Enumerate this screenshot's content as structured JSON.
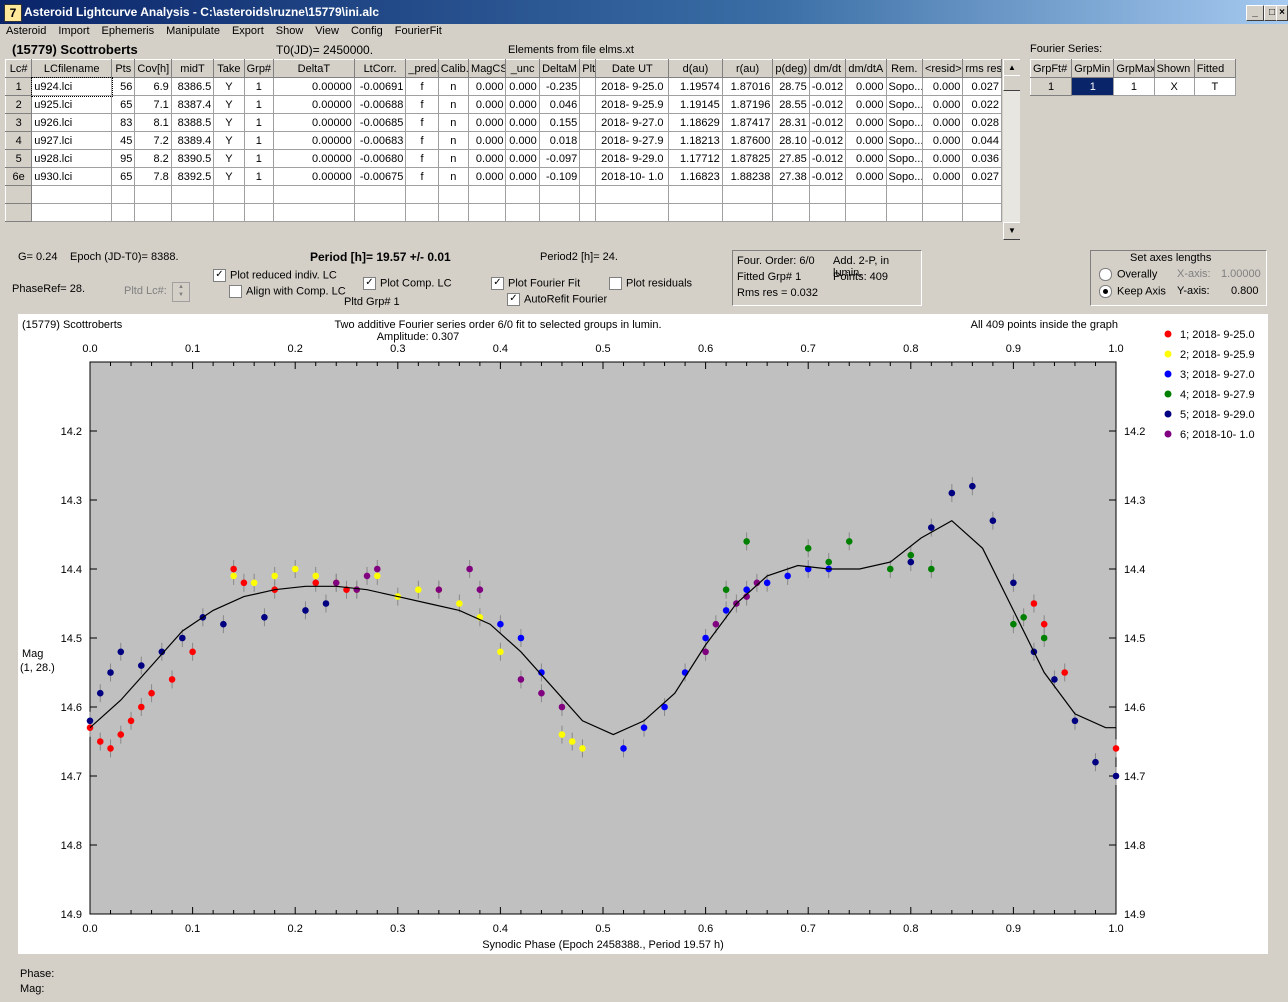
{
  "window": {
    "title": "Asteroid Lightcurve Analysis - C:\\asteroids\\ruzne\\15779\\ini.alc"
  },
  "menu": [
    "Asteroid",
    "Import",
    "Ephemeris",
    "Manipulate",
    "Export",
    "Show",
    "View",
    "Config",
    "FourierFit"
  ],
  "header": {
    "asteroid": "(15779) Scottroberts",
    "t0": "T0(JD)= 2450000.",
    "elements": "Elements from file elms.xt"
  },
  "lc_table": {
    "columns": [
      "Lc#",
      "LCfilename",
      "Pts",
      "Cov[h]",
      "midT",
      "Take",
      "Grp#",
      "DeltaT",
      "LtCorr.",
      "_pred.",
      "Calib.",
      "MagCS",
      "_unc",
      "DeltaM",
      "Plt",
      "Date UT",
      "d(au)",
      "r(au)",
      "p(deg)",
      "dm/dt",
      "dm/dtA",
      "Rem.",
      "<resid>",
      "rms res"
    ],
    "rows": [
      [
        "1",
        "u924.lci",
        "56",
        "6.9",
        "8386.5",
        "Y",
        "1",
        "0.00000",
        "-0.00691",
        "f",
        "n",
        "0.000",
        "0.000",
        "-0.235",
        "",
        "2018- 9-25.0",
        "1.19574",
        "1.87016",
        "28.75",
        "-0.012",
        "0.000",
        "Sopo...",
        "0.000",
        "0.027"
      ],
      [
        "2",
        "u925.lci",
        "65",
        "7.1",
        "8387.4",
        "Y",
        "1",
        "0.00000",
        "-0.00688",
        "f",
        "n",
        "0.000",
        "0.000",
        "0.046",
        "",
        "2018- 9-25.9",
        "1.19145",
        "1.87196",
        "28.55",
        "-0.012",
        "0.000",
        "Sopo...",
        "0.000",
        "0.022"
      ],
      [
        "3",
        "u926.lci",
        "83",
        "8.1",
        "8388.5",
        "Y",
        "1",
        "0.00000",
        "-0.00685",
        "f",
        "n",
        "0.000",
        "0.000",
        "0.155",
        "",
        "2018- 9-27.0",
        "1.18629",
        "1.87417",
        "28.31",
        "-0.012",
        "0.000",
        "Sopo...",
        "0.000",
        "0.028"
      ],
      [
        "4",
        "u927.lci",
        "45",
        "7.2",
        "8389.4",
        "Y",
        "1",
        "0.00000",
        "-0.00683",
        "f",
        "n",
        "0.000",
        "0.000",
        "0.018",
        "",
        "2018- 9-27.9",
        "1.18213",
        "1.87600",
        "28.10",
        "-0.012",
        "0.000",
        "Sopo...",
        "0.000",
        "0.044"
      ],
      [
        "5",
        "u928.lci",
        "95",
        "8.2",
        "8390.5",
        "Y",
        "1",
        "0.00000",
        "-0.00680",
        "f",
        "n",
        "0.000",
        "0.000",
        "-0.097",
        "",
        "2018- 9-29.0",
        "1.17712",
        "1.87825",
        "27.85",
        "-0.012",
        "0.000",
        "Sopo...",
        "0.000",
        "0.036"
      ],
      [
        "6e",
        "u930.lci",
        "65",
        "7.8",
        "8392.5",
        "Y",
        "1",
        "0.00000",
        "-0.00675",
        "f",
        "n",
        "0.000",
        "0.000",
        "-0.109",
        "",
        "2018-10- 1.0",
        "1.16823",
        "1.88238",
        "27.38",
        "-0.012",
        "0.000",
        "Sopo...",
        "0.000",
        "0.027"
      ]
    ]
  },
  "fourier": {
    "label": "Fourier Series:",
    "columns": [
      "GrpFt#",
      "GrpMin",
      "GrpMax",
      "Shown",
      "Fitted"
    ],
    "row": [
      "1",
      "1",
      "1",
      "X",
      "T"
    ]
  },
  "info": {
    "g": "G= 0.24",
    "epoch": "Epoch (JD-T0)= 8388.",
    "period": "Period [h]= 19.57 +/- 0.01",
    "period2": "Period2 [h]= 24.",
    "phaseref": "PhaseRef= 28.",
    "pltd_lc": "Pltd Lc#:",
    "pltd_grp": "Pltd Grp#  1"
  },
  "checks": {
    "plot_reduced": {
      "label": "Plot reduced indiv. LC",
      "checked": true
    },
    "align_comp": {
      "label": "Align with Comp. LC",
      "checked": false
    },
    "plot_comp": {
      "label": "Plot Comp. LC",
      "checked": true
    },
    "plot_fourier": {
      "label": "Plot Fourier Fit",
      "checked": true
    },
    "autorefit": {
      "label": "AutoRefit Fourier",
      "checked": true
    },
    "plot_residuals": {
      "label": "Plot residuals",
      "checked": false
    }
  },
  "fitinfo": {
    "order": "Four. Order:  6/0",
    "add": "Add. 2-P, in lumin.",
    "fitted": "Fitted Grp# 1",
    "points": "Points: 409",
    "rms": "Rms res     = 0.032"
  },
  "axes_box": {
    "title": "Set axes lengths",
    "overall": "Overally",
    "keep": "Keep Axis",
    "selected": "keep",
    "xaxis_label": "X-axis:",
    "xaxis_value": "1.00000",
    "yaxis_label": "Y-axis:",
    "yaxis_value": "0.800"
  },
  "plot": {
    "title_left": "(15779) Scottroberts",
    "title_center": "Two additive Fourier series order 6/0 fit to selected groups in lumin.",
    "amplitude": "Amplitude: 0.307",
    "title_right": "All 409 points inside the graph",
    "ylabel1": "Mag",
    "ylabel2": "(1, 28.)",
    "xlabel": "Synodic Phase (Epoch 2458388., Period 19.57 h)",
    "x_ticks": [
      "0.0",
      "0.1",
      "0.2",
      "0.3",
      "0.4",
      "0.5",
      "0.6",
      "0.7",
      "0.8",
      "0.9",
      "1.0"
    ],
    "y_ticks": [
      "14.2",
      "14.3",
      "14.4",
      "14.5",
      "14.6",
      "14.7",
      "14.8",
      "14.9"
    ],
    "xlim": [
      0,
      1
    ],
    "ylim": [
      14.1,
      14.9
    ],
    "legend": [
      {
        "label": "1; 2018- 9-25.0",
        "color": "#ff0000"
      },
      {
        "label": "2; 2018- 9-25.9",
        "color": "#ffff00"
      },
      {
        "label": "3; 2018- 9-27.0",
        "color": "#0000ff"
      },
      {
        "label": "4; 2018- 9-27.9",
        "color": "#008000"
      },
      {
        "label": "5; 2018- 9-29.0",
        "color": "#000080"
      },
      {
        "label": "6; 2018-10- 1.0",
        "color": "#800080"
      }
    ]
  },
  "chart_data": {
    "type": "scatter",
    "xlabel": "Synodic Phase (Epoch 2458388., Period 19.57 h)",
    "ylabel": "Mag",
    "xlim": [
      0,
      1
    ],
    "ylim": [
      14.1,
      14.9
    ],
    "y_inverted": true,
    "grid": false,
    "legend_position": "right",
    "fit_curve": {
      "x": [
        0.0,
        0.03,
        0.06,
        0.09,
        0.12,
        0.15,
        0.18,
        0.21,
        0.24,
        0.27,
        0.3,
        0.33,
        0.36,
        0.39,
        0.42,
        0.45,
        0.48,
        0.51,
        0.54,
        0.57,
        0.6,
        0.63,
        0.66,
        0.69,
        0.72,
        0.75,
        0.78,
        0.81,
        0.84,
        0.87,
        0.9,
        0.93,
        0.96,
        0.99,
        1.0
      ],
      "y": [
        14.63,
        14.59,
        14.54,
        14.49,
        14.46,
        14.44,
        14.43,
        14.425,
        14.425,
        14.43,
        14.44,
        14.45,
        14.46,
        14.48,
        14.52,
        14.57,
        14.62,
        14.64,
        14.62,
        14.58,
        14.51,
        14.45,
        14.41,
        14.395,
        14.4,
        14.4,
        14.39,
        14.355,
        14.33,
        14.37,
        14.46,
        14.55,
        14.61,
        14.63,
        14.63
      ]
    },
    "series": [
      {
        "name": "1; 2018- 9-25.0",
        "x": [
          0.0,
          0.01,
          0.02,
          0.03,
          0.04,
          0.05,
          0.06,
          0.08,
          0.1,
          0.14,
          0.15,
          0.18,
          0.22,
          0.25,
          0.92,
          0.93,
          0.95,
          1.0
        ],
        "y": [
          14.63,
          14.65,
          14.66,
          14.64,
          14.62,
          14.6,
          14.58,
          14.56,
          14.52,
          14.4,
          14.42,
          14.43,
          14.42,
          14.43,
          14.45,
          14.48,
          14.55,
          14.66
        ]
      },
      {
        "name": "2; 2018- 9-25.9",
        "x": [
          0.14,
          0.16,
          0.18,
          0.2,
          0.22,
          0.24,
          0.26,
          0.28,
          0.3,
          0.32,
          0.34,
          0.36,
          0.38,
          0.4,
          0.46,
          0.47,
          0.48
        ],
        "y": [
          14.41,
          14.42,
          14.41,
          14.4,
          14.41,
          14.42,
          14.43,
          14.41,
          14.44,
          14.43,
          14.43,
          14.45,
          14.47,
          14.52,
          14.64,
          14.65,
          14.66
        ]
      },
      {
        "name": "3; 2018- 9-27.0",
        "x": [
          0.4,
          0.42,
          0.44,
          0.52,
          0.54,
          0.56,
          0.58,
          0.6,
          0.62,
          0.64,
          0.66,
          0.68,
          0.7,
          0.72
        ],
        "y": [
          14.48,
          14.5,
          14.55,
          14.66,
          14.63,
          14.6,
          14.55,
          14.5,
          14.46,
          14.43,
          14.42,
          14.41,
          14.4,
          14.4
        ]
      },
      {
        "name": "4; 2018- 9-27.9",
        "x": [
          0.62,
          0.64,
          0.7,
          0.72,
          0.74,
          0.78,
          0.8,
          0.82,
          0.9,
          0.91,
          0.93
        ],
        "y": [
          14.43,
          14.36,
          14.37,
          14.39,
          14.36,
          14.4,
          14.38,
          14.4,
          14.48,
          14.47,
          14.5
        ]
      },
      {
        "name": "5; 2018- 9-29.0",
        "x": [
          0.0,
          0.01,
          0.02,
          0.03,
          0.05,
          0.07,
          0.09,
          0.11,
          0.13,
          0.17,
          0.21,
          0.23,
          0.8,
          0.82,
          0.84,
          0.86,
          0.88,
          0.9,
          0.92,
          0.94,
          0.96,
          0.98,
          1.0
        ],
        "y": [
          14.62,
          14.58,
          14.55,
          14.52,
          14.54,
          14.52,
          14.5,
          14.47,
          14.48,
          14.47,
          14.46,
          14.45,
          14.39,
          14.34,
          14.29,
          14.28,
          14.33,
          14.42,
          14.52,
          14.56,
          14.62,
          14.68,
          14.7
        ]
      },
      {
        "name": "6; 2018-10- 1.0",
        "x": [
          0.24,
          0.26,
          0.27,
          0.28,
          0.34,
          0.37,
          0.38,
          0.42,
          0.44,
          0.46,
          0.6,
          0.61,
          0.63,
          0.64,
          0.65
        ],
        "y": [
          14.42,
          14.43,
          14.41,
          14.4,
          14.43,
          14.4,
          14.43,
          14.56,
          14.58,
          14.6,
          14.52,
          14.48,
          14.45,
          14.44,
          14.42
        ]
      }
    ]
  },
  "status": {
    "phase": "Phase:",
    "mag": "Mag:"
  }
}
